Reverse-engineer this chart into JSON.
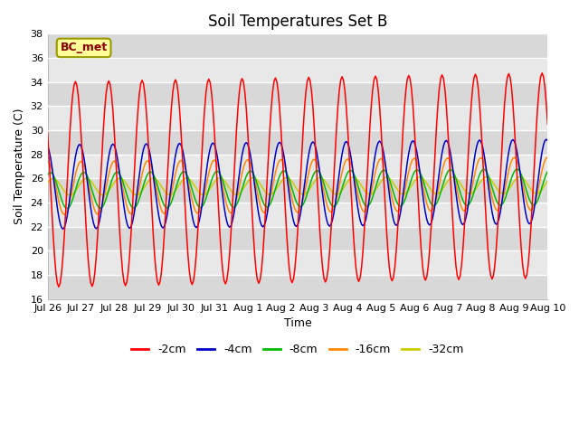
{
  "title": "Soil Temperatures Set B",
  "xlabel": "Time",
  "ylabel": "Soil Temperature (C)",
  "ylim": [
    16,
    38
  ],
  "yticks": [
    16,
    18,
    20,
    22,
    24,
    26,
    28,
    30,
    32,
    34,
    36,
    38
  ],
  "annotation": "BC_met",
  "series_colors": {
    "-2cm": "#ff0000",
    "-4cm": "#0000cc",
    "-8cm": "#00bb00",
    "-16cm": "#ff8800",
    "-32cm": "#cccc00"
  },
  "x_labels": [
    "Jul 26",
    "Jul 27",
    "Jul 28",
    "Jul 29",
    "Jul 30",
    "Jul 31",
    "Aug 1",
    "Aug 2",
    "Aug 3",
    "Aug 4",
    "Aug 5",
    "Aug 6",
    "Aug 7",
    "Aug 8",
    "Aug 9",
    "Aug 10"
  ],
  "x_positions": [
    0,
    1,
    2,
    3,
    4,
    5,
    6,
    7,
    8,
    9,
    10,
    11,
    12,
    13,
    14,
    15
  ],
  "legend_labels": [
    "-2cm",
    "-4cm",
    "-8cm",
    "-16cm",
    "-32cm"
  ],
  "band_colors": [
    "#d8d8d8",
    "#e8e8e8"
  ]
}
